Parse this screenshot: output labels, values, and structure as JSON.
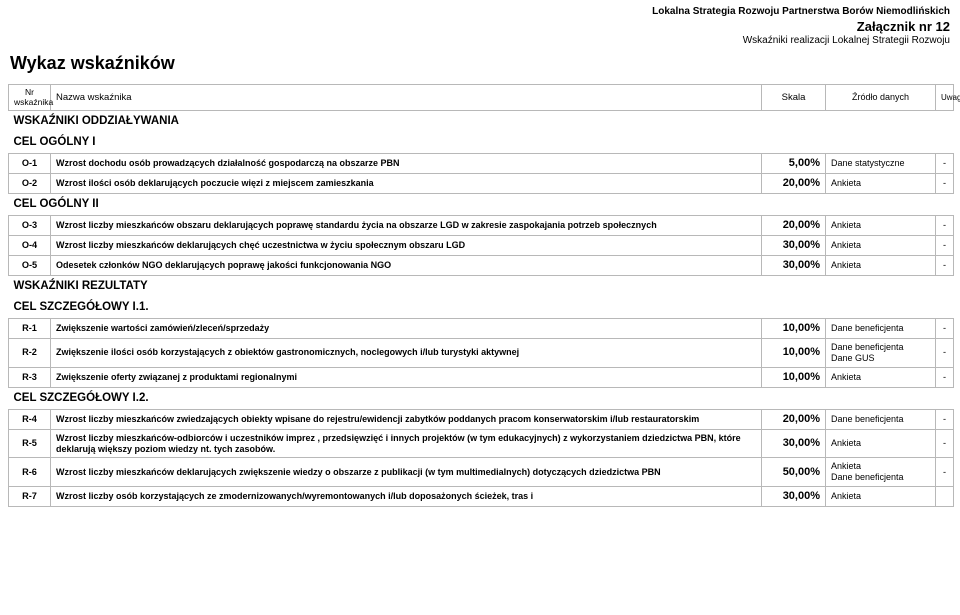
{
  "header": {
    "line1": "Lokalna Strategia Rozwoju Partnerstwa Borów Niemodlińskich",
    "line2": "Załącznik nr 12",
    "line3": "Wskaźniki realizacji Lokalnej Strategii Rozwoju"
  },
  "title": "Wykaz wskaźników",
  "columns": {
    "code": "Nr wskaźnika",
    "name": "Nazwa wskaźnika",
    "scale": "Skala",
    "source": "Źródło danych",
    "remark": "Uwagi"
  },
  "sections": [
    {
      "type": "section",
      "label": "WSKAŹNIKI ODDZIAŁYWANIA"
    },
    {
      "type": "section",
      "label": "CEL OGÓLNY I"
    },
    {
      "type": "row",
      "code": "O-1",
      "name": "Wzrost dochodu osób prowadzących działalność gospodarczą na obszarze PBN",
      "scale": "5,00%",
      "source": "Dane statystyczne",
      "remark": "-"
    },
    {
      "type": "row",
      "code": "O-2",
      "name": "Wzrost ilości osób deklarujących poczucie więzi z miejscem zamieszkania",
      "scale": "20,00%",
      "source": "Ankieta",
      "remark": "-"
    },
    {
      "type": "section",
      "label": "CEL OGÓLNY II"
    },
    {
      "type": "row",
      "code": "O-3",
      "name": "Wzrost liczby mieszkańców obszaru deklarujących poprawę standardu życia na obszarze LGD w zakresie zaspokajania potrzeb społecznych",
      "scale": "20,00%",
      "source": "Ankieta",
      "remark": "-"
    },
    {
      "type": "row",
      "code": "O-4",
      "name": "Wzrost liczby mieszkańców deklarujących chęć uczestnictwa w życiu społecznym obszaru LGD",
      "scale": "30,00%",
      "source": "Ankieta",
      "remark": "-"
    },
    {
      "type": "row",
      "code": "O-5",
      "name": "Odesetek członków NGO deklarujących poprawę jakości funkcjonowania NGO",
      "scale": "30,00%",
      "source": "Ankieta",
      "remark": "-"
    },
    {
      "type": "section",
      "label": "WSKAŹNIKI REZULTATY"
    },
    {
      "type": "section",
      "label": "CEL SZCZEGÓŁOWY I.1."
    },
    {
      "type": "row",
      "code": "R-1",
      "name": "Zwiększenie wartości zamówień/zleceń/sprzedaży",
      "scale": "10,00%",
      "source": "Dane beneficjenta",
      "remark": "-"
    },
    {
      "type": "row",
      "code": "R-2",
      "name": "Zwiększenie ilości osób korzystających z obiektów gastronomicznych, noclegowych i/lub turystyki aktywnej",
      "scale": "10,00%",
      "source": "Dane beneficjenta\nDane GUS",
      "remark": "-"
    },
    {
      "type": "row",
      "code": "R-3",
      "name": "Zwiększenie oferty związanej z produktami regionalnymi",
      "scale": "10,00%",
      "source": "Ankieta",
      "remark": "-"
    },
    {
      "type": "section",
      "label": "CEL SZCZEGÓŁOWY I.2."
    },
    {
      "type": "row",
      "code": "R-4",
      "name": "Wzrost liczby mieszkańców zwiedzających obiekty wpisane do rejestru/ewidencji zabytków poddanych pracom konserwatorskim i/lub restauratorskim",
      "scale": "20,00%",
      "source": "Dane beneficjenta",
      "remark": "-"
    },
    {
      "type": "row",
      "code": "R-5",
      "name": "Wzrost liczby mieszkańców-odbiorców i uczestników imprez , przedsięwzięć i innych projektów (w tym edukacyjnych) z wykorzystaniem dziedzictwa PBN, które deklarują większy poziom wiedzy nt. tych zasobów.",
      "scale": "30,00%",
      "source": "Ankieta",
      "remark": "-"
    },
    {
      "type": "row",
      "code": "R-6",
      "name": "Wzrost liczby mieszkańców deklarujących zwiększenie wiedzy o obszarze z publikacji (w tym multimedialnych) dotyczących dziedzictwa PBN",
      "scale": "50,00%",
      "source": "Ankieta\nDane beneficjenta",
      "remark": "-"
    },
    {
      "type": "row",
      "code": "R-7",
      "name": "Wzrost liczby osób korzystających ze zmodernizowanych/wyremontowanych i/lub doposażonych ścieżek, tras i",
      "scale": "30,00%",
      "source": "Ankieta",
      "remark": ""
    }
  ]
}
